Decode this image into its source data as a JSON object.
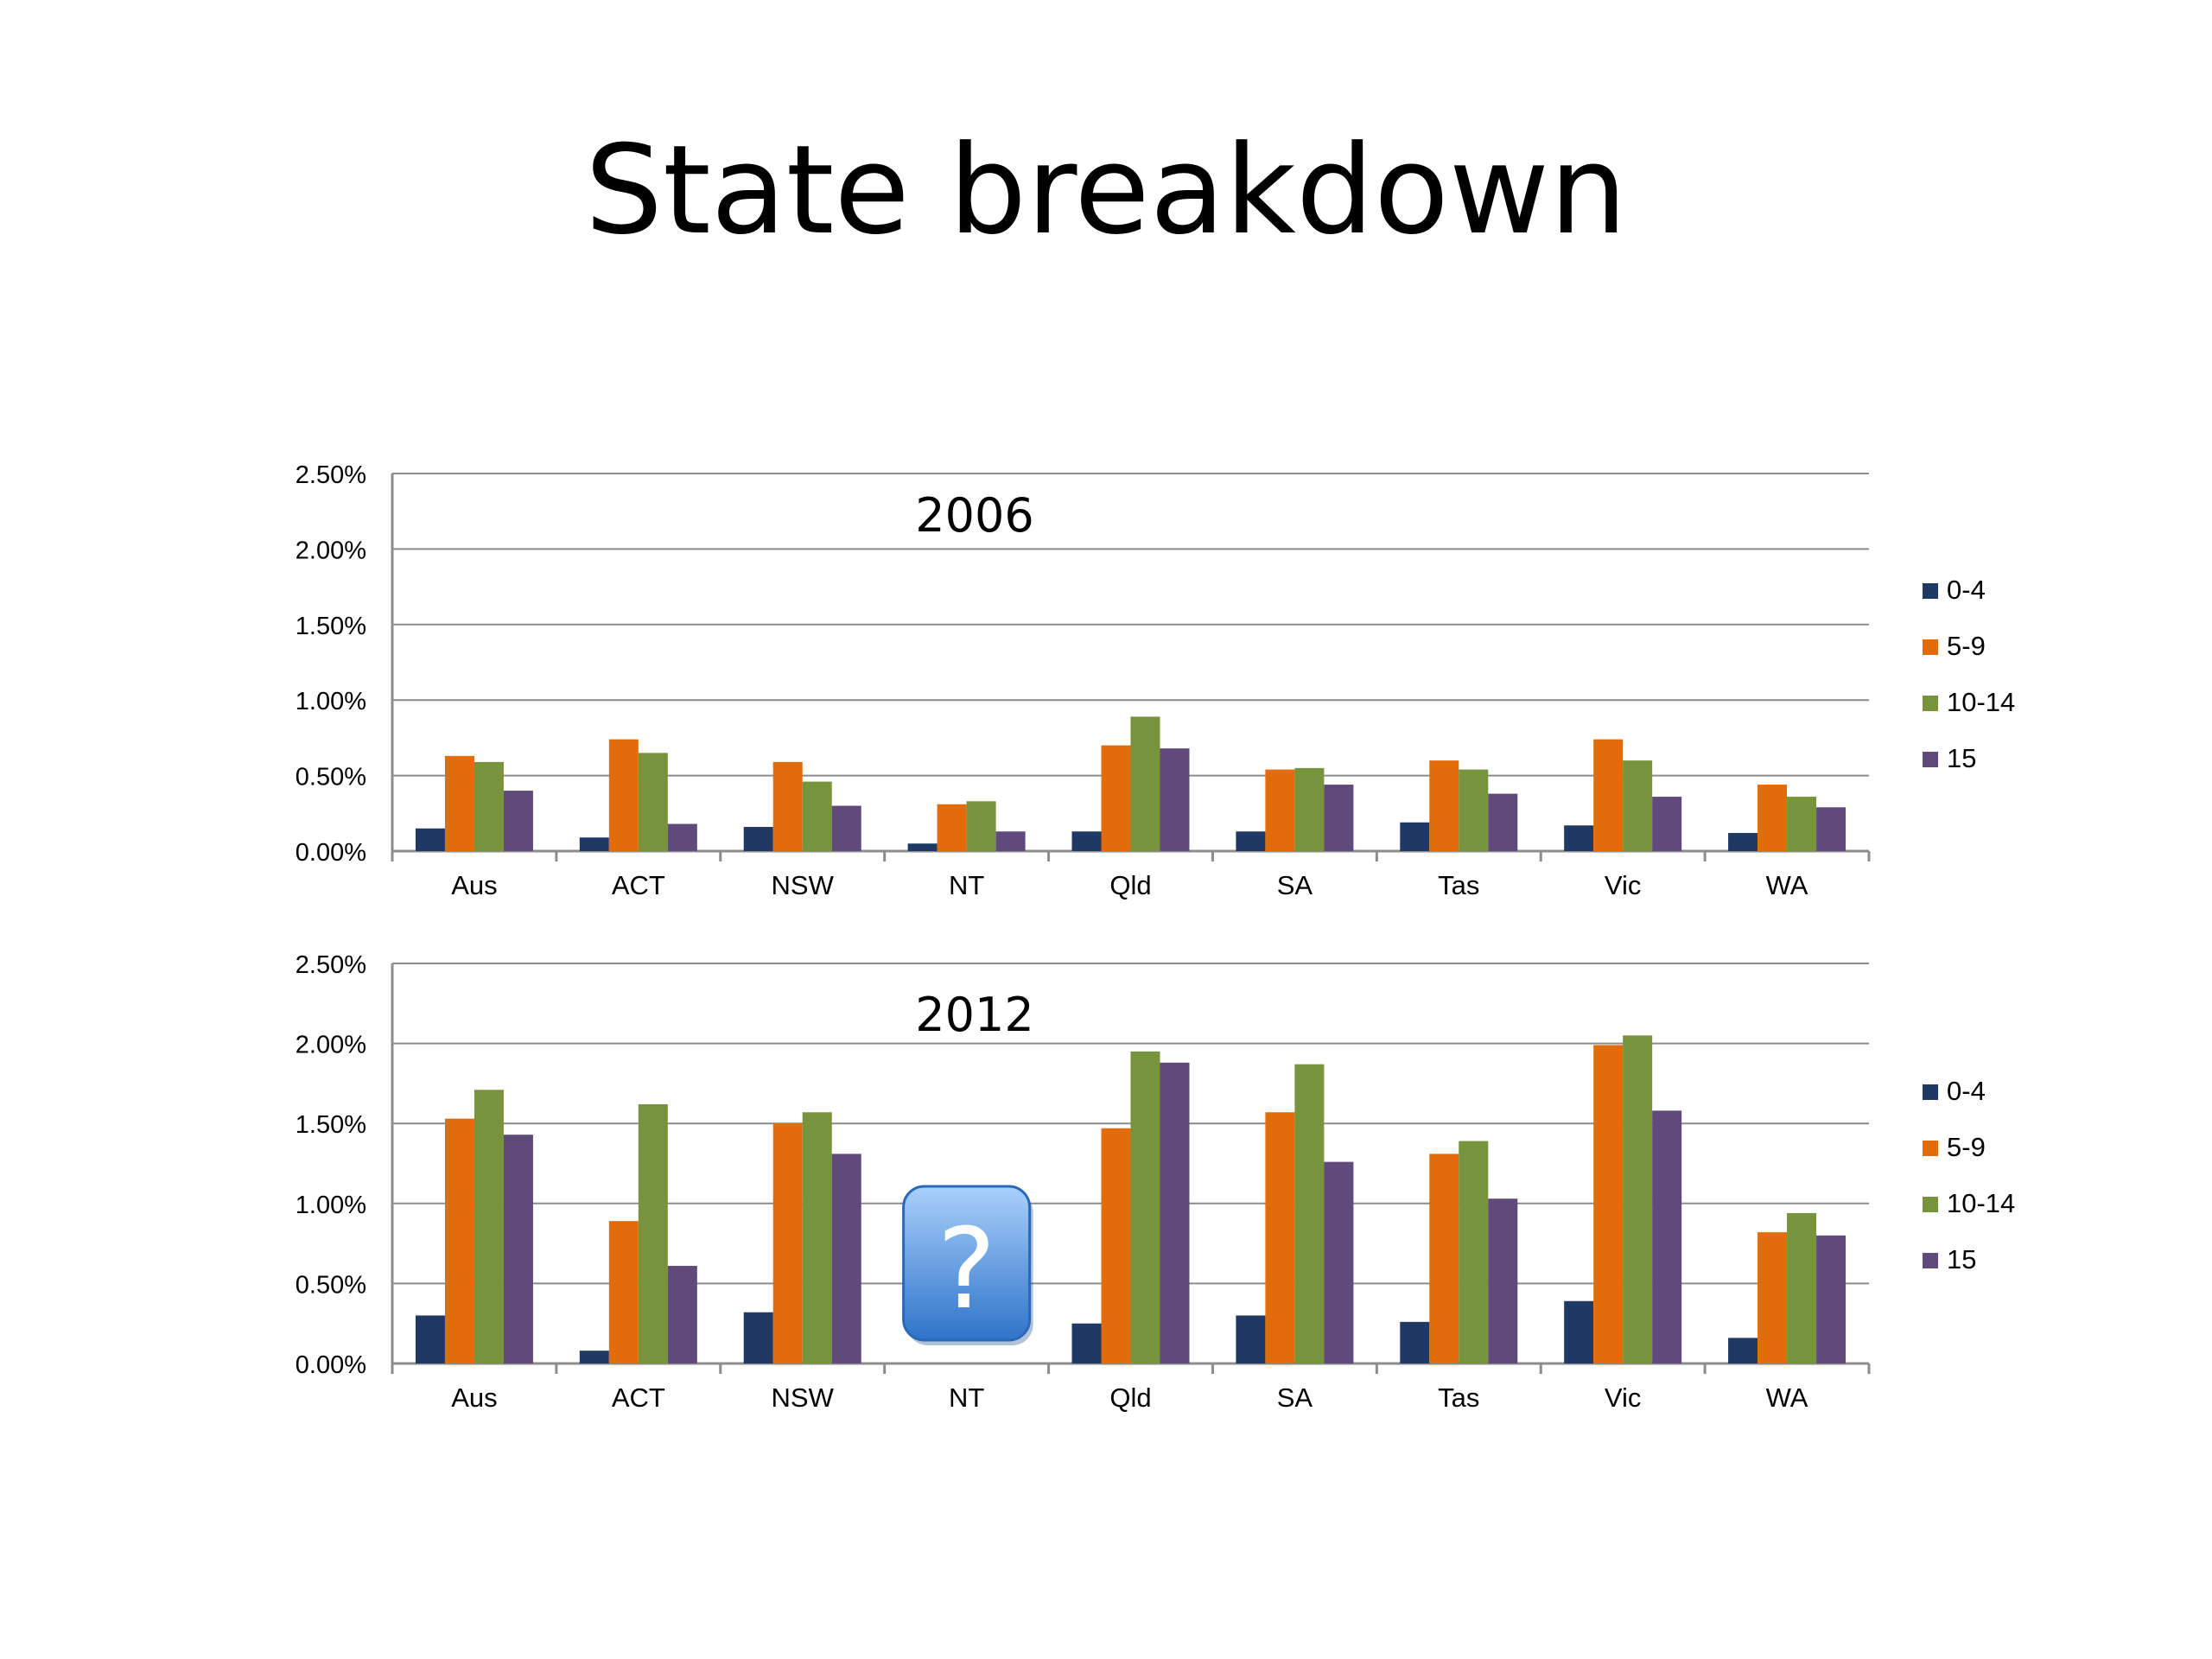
{
  "slide": {
    "title": "State breakdown"
  },
  "chart_data": [
    {
      "type": "bar",
      "title": "2006",
      "categories": [
        "Aus",
        "ACT",
        "NSW",
        "NT",
        "Qld",
        "SA",
        "Tas",
        "Vic",
        "WA"
      ],
      "ylim": [
        0,
        0.025
      ],
      "yticks": [
        "0.00%",
        "0.50%",
        "1.00%",
        "1.50%",
        "2.00%",
        "2.50%"
      ],
      "grid": true,
      "legend_position": "right",
      "series": [
        {
          "name": "0-4",
          "color": "#1f3864",
          "values": [
            0.0015,
            0.0009,
            0.0016,
            0.0005,
            0.0013,
            0.0013,
            0.0019,
            0.0017,
            0.0012
          ]
        },
        {
          "name": "5-9",
          "color": "#e36c0a",
          "values": [
            0.0063,
            0.0074,
            0.0059,
            0.0031,
            0.007,
            0.0054,
            0.006,
            0.0074,
            0.0044
          ]
        },
        {
          "name": "10-14",
          "color": "#77933c",
          "values": [
            0.0059,
            0.0065,
            0.0046,
            0.0033,
            0.0089,
            0.0055,
            0.0054,
            0.006,
            0.0036
          ]
        },
        {
          "name": "15",
          "color": "#604a7b",
          "values": [
            0.004,
            0.0018,
            0.003,
            0.0013,
            0.0068,
            0.0044,
            0.0038,
            0.0036,
            0.0029
          ]
        }
      ]
    },
    {
      "type": "bar",
      "title": "2012",
      "categories": [
        "Aus",
        "ACT",
        "NSW",
        "NT",
        "Qld",
        "SA",
        "Tas",
        "Vic",
        "WA"
      ],
      "ylim": [
        0,
        0.025
      ],
      "yticks": [
        "0.00%",
        "0.50%",
        "1.00%",
        "1.50%",
        "2.00%",
        "2.50%"
      ],
      "grid": true,
      "legend_position": "right",
      "annotation": {
        "category": "NT",
        "icon": "question-mark-icon",
        "text": "?",
        "color": "#3d85d8"
      },
      "series": [
        {
          "name": "0-4",
          "color": "#1f3864",
          "values": [
            0.003,
            0.0008,
            0.0032,
            null,
            0.0025,
            0.003,
            0.0026,
            0.0039,
            0.0016
          ]
        },
        {
          "name": "5-9",
          "color": "#e36c0a",
          "values": [
            0.0153,
            0.0089,
            0.015,
            null,
            0.0147,
            0.0157,
            0.0131,
            0.0199,
            0.0082
          ]
        },
        {
          "name": "10-14",
          "color": "#77933c",
          "values": [
            0.0171,
            0.0162,
            0.0157,
            null,
            0.0195,
            0.0187,
            0.0139,
            0.0205,
            0.0094
          ]
        },
        {
          "name": "15",
          "color": "#604a7b",
          "values": [
            0.0143,
            0.0061,
            0.0131,
            null,
            0.0188,
            0.0126,
            0.0103,
            0.0158,
            0.008
          ]
        }
      ]
    }
  ]
}
